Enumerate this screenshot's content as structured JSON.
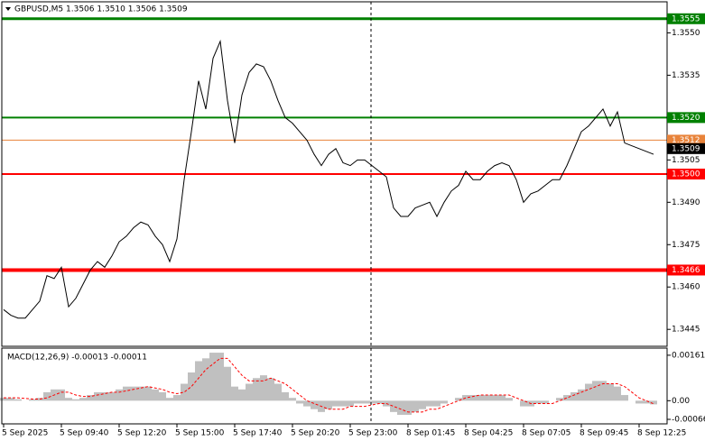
{
  "chart_data": [
    {
      "type": "line",
      "title": "GBPUSD,M5 1.3506 1.3510 1.3506 1.3509",
      "color": "#000000",
      "categories": [
        "5 Sep 2025",
        null,
        null,
        null,
        null,
        null,
        null,
        null,
        "5 Sep 09:40",
        null,
        null,
        null,
        null,
        null,
        null,
        null,
        "5 Sep 12:20",
        null,
        null,
        null,
        null,
        null,
        null,
        null,
        "5 Sep 15:00",
        null,
        null,
        null,
        null,
        null,
        null,
        null,
        "5 Sep 17:40",
        null,
        null,
        null,
        null,
        null,
        null,
        null,
        "5 Sep 20:20",
        null,
        null,
        null,
        null,
        null,
        null,
        null,
        "5 Sep 23:00",
        null,
        null,
        null,
        null,
        null,
        null,
        null,
        "8 Sep 01:45",
        null,
        null,
        null,
        null,
        null,
        null,
        null,
        "8 Sep 04:25",
        null,
        null,
        null,
        null,
        null,
        null,
        null,
        "8 Sep 07:05",
        null,
        null,
        null,
        null,
        null,
        null,
        null,
        "8 Sep 09:45",
        null,
        null,
        null,
        null,
        null,
        null,
        null,
        "8 Sep 12:25",
        null,
        null
      ],
      "values": [
        1.3452,
        1.345,
        1.3449,
        1.3449,
        1.3452,
        1.3455,
        1.3464,
        1.3463,
        1.3467,
        1.3453,
        1.3456,
        1.3461,
        1.3466,
        1.3469,
        1.3467,
        1.3471,
        1.3476,
        1.3478,
        1.3481,
        1.3483,
        1.3482,
        1.3478,
        1.3475,
        1.3469,
        1.3477,
        1.3498,
        1.3515,
        1.3533,
        1.3523,
        1.3541,
        1.3547,
        1.3526,
        1.3511,
        1.3528,
        1.3536,
        1.3539,
        1.3538,
        1.3533,
        1.3526,
        1.352,
        1.3518,
        1.3515,
        1.3512,
        1.3507,
        1.3503,
        1.3507,
        1.3509,
        1.3504,
        1.3503,
        1.3505,
        1.3505,
        1.3503,
        1.3501,
        1.3499,
        1.3488,
        1.3485,
        1.3485,
        1.3488,
        1.3489,
        1.349,
        1.3485,
        1.349,
        1.3494,
        1.3496,
        1.3501,
        1.3498,
        1.3498,
        1.3501,
        1.3503,
        1.3504,
        1.3503,
        1.3498,
        1.349,
        1.3493,
        1.3494,
        1.3496,
        1.3498,
        1.3498,
        1.3503,
        1.3509,
        1.3515,
        1.3517,
        1.352,
        1.3523,
        1.3517,
        1.3522,
        1.3511,
        1.351,
        1.3509,
        1.3508,
        1.3507
      ],
      "ylim": [
        1.3439,
        1.3561
      ],
      "yticks": [
        1.3445,
        {
          "value": 1.346,
          "label": "1.3460"
        },
        1.3475,
        {
          "value": 1.349,
          "label": "1.3490"
        },
        1.3505,
        1.3535,
        {
          "value": 1.355,
          "label": "1.3550"
        }
      ],
      "levels": [
        {
          "value": 1.3555,
          "color": "#008000"
        },
        {
          "value": 1.352,
          "label": "1.3520",
          "color": "#008000"
        },
        {
          "value": 1.3512,
          "color": "#e8833a"
        },
        {
          "value": 1.35,
          "label": "1.3500",
          "color": "#ff0000"
        },
        {
          "value": 1.3466,
          "color": "#ff0000"
        }
      ],
      "last_price": 1.3509
    },
    {
      "type": "bar",
      "title": "MACD(12,26,9) -0.00013 -0.00011",
      "color": "#c0c0c0",
      "values": [
        0.0001,
        0.0001,
        5e-05,
        0,
        5e-05,
        0.0001,
        0.0003,
        0.0004,
        0.0004,
        0.0001,
        5e-05,
        0.0001,
        0.0002,
        0.0003,
        0.0003,
        0.0003,
        0.0004,
        0.0005,
        0.0005,
        0.0005,
        0.0005,
        0.0004,
        0.0003,
        0.0001,
        0.0002,
        0.0006,
        0.001,
        0.0014,
        0.0015,
        0.0017,
        0.0017,
        0.0012,
        0.0005,
        0.0004,
        0.0006,
        0.0008,
        0.0009,
        0.0008,
        0.0006,
        0.0003,
        0.0001,
        -0.0001,
        -0.0002,
        -0.0003,
        -0.0004,
        -0.0003,
        -0.0002,
        -0.0002,
        -0.0002,
        -0.0001,
        -0.0001,
        -0.0001,
        -0.0001,
        -0.0002,
        -0.0004,
        -0.0005,
        -0.0005,
        -0.0004,
        -0.0003,
        -0.0002,
        -0.0002,
        -0.0001,
        0,
        0.0001,
        0.0002,
        0.0002,
        0.0002,
        0.0002,
        0.0002,
        0.0002,
        0.0001,
        0,
        -0.0002,
        -0.0002,
        -0.0001,
        -0.0001,
        0,
        0.0001,
        0.0002,
        0.0003,
        0.0004,
        0.0006,
        0.0007,
        0.0007,
        0.0006,
        0.0005,
        0.0002,
        0,
        -0.0001,
        -0.0001,
        -0.00013
      ],
      "signal": {
        "color": "#ff0000",
        "values": [
          0.0001,
          0.0001,
          0.0001,
          8e-05,
          6e-05,
          6e-05,
          0.0001,
          0.0002,
          0.0003,
          0.0003,
          0.0002,
          0.00015,
          0.00015,
          0.0002,
          0.00025,
          0.0003,
          0.0003,
          0.00035,
          0.0004,
          0.00045,
          0.0005,
          0.00045,
          0.0004,
          0.0003,
          0.00025,
          0.0003,
          0.0005,
          0.0008,
          0.0011,
          0.0013,
          0.0015,
          0.0015,
          0.0012,
          0.0009,
          0.0007,
          0.0007,
          0.0007,
          0.0008,
          0.0007,
          0.0006,
          0.0004,
          0.0002,
          0,
          -0.0001,
          -0.0002,
          -0.0003,
          -0.0003,
          -0.0003,
          -0.0002,
          -0.0002,
          -0.0002,
          -0.00015,
          -0.0001,
          -0.0001,
          -0.0002,
          -0.0003,
          -0.0004,
          -0.0004,
          -0.0004,
          -0.0003,
          -0.0003,
          -0.0002,
          -0.0001,
          0,
          0.0001,
          0.00015,
          0.0002,
          0.0002,
          0.0002,
          0.0002,
          0.0002,
          0.0001,
          0,
          -0.0001,
          -0.0001,
          -0.0001,
          -0.0001,
          0,
          0.0001,
          0.0002,
          0.0003,
          0.0004,
          0.0005,
          0.0006,
          0.0006,
          0.0006,
          0.0005,
          0.0003,
          0.0001,
          0,
          -0.00011
        ]
      },
      "ylim": [
        -0.00082,
        0.00183
      ],
      "yticks": [
        0.00161,
        {
          "value": 0,
          "label": "0.00"
        },
        -0.00066
      ]
    }
  ]
}
